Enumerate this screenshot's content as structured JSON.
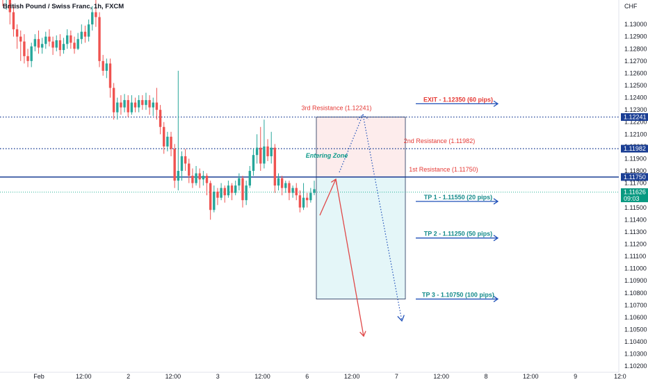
{
  "header": {
    "title": "British Pound / Swiss Franc, 1h, FXCM"
  },
  "colors": {
    "bull": "#26a69a",
    "bear": "#ef5350",
    "resistance_line": "#1a3e94",
    "tp_text": "#138a8a",
    "exit_text": "#e53935",
    "arrow_blue": "#1e4fb8"
  },
  "chart_data": {
    "type": "candlestick",
    "title": "British Pound / Swiss Franc, 1h, FXCM",
    "y_unit": "CHF",
    "ylim": [
      1.1015,
      1.132
    ],
    "y_ticks": [
      "1.13000",
      "1.12900",
      "1.12800",
      "1.12700",
      "1.12600",
      "1.12500",
      "1.12400",
      "1.12300",
      "1.12200",
      "1.12100",
      "1.12000",
      "1.11900",
      "1.11800",
      "1.11700",
      "1.11600",
      "1.11500",
      "1.11400",
      "1.11300",
      "1.11200",
      "1.11100",
      "1.11000",
      "1.10900",
      "1.10800",
      "1.10700",
      "1.10600",
      "1.10500",
      "1.10400",
      "1.10300",
      "1.10200"
    ],
    "x_ticks": [
      "Feb",
      "12:00",
      "2",
      "12:00",
      "3",
      "12:00",
      "6",
      "12:00",
      "7",
      "12:00",
      "8",
      "12:00",
      "9",
      "12:0"
    ],
    "price_badges": [
      {
        "value": 1.12241,
        "label": "1.12241",
        "color": "#1a3e94"
      },
      {
        "value": 1.11982,
        "label": "1.11982",
        "color": "#1a3e94"
      },
      {
        "value": 1.1175,
        "label": "1.11750",
        "color": "#1a3e94"
      },
      {
        "value": 1.11626,
        "label": "1.11626",
        "sub": "09:03",
        "color": "#089981"
      }
    ],
    "levels": [
      {
        "name": "3rd Resistance",
        "value": 1.12241,
        "label": "3rd Resistance (1.12241)",
        "style": "dotted"
      },
      {
        "name": "2nd Resistance",
        "value": 1.11982,
        "label": "2nd Resistance (1.11982)",
        "style": "dotted"
      },
      {
        "name": "1st Resistance",
        "value": 1.1175,
        "label": "1st Resistance  (1.11750)",
        "style": "solid"
      },
      {
        "name": "Current price",
        "value": 1.11626,
        "style": "dotted-green"
      }
    ],
    "targets": [
      {
        "label": "EXIT - 1.12350 (60 pips)",
        "value": 1.1235,
        "kind": "exit"
      },
      {
        "label": "TP 1 - 1.11550 (20 pips)",
        "value": 1.1155,
        "kind": "tp"
      },
      {
        "label": "TP 2 - 1.11250 (50 pips)",
        "value": 1.1125,
        "kind": "tp"
      },
      {
        "label": "TP 3 - 1.10750 (100 pips)",
        "value": 1.1075,
        "kind": "tp"
      }
    ],
    "position_box": {
      "entry": 1.1175,
      "stop": 1.12241,
      "target": 1.1075
    },
    "entering_zone_label": "Entering Zone",
    "candles": [
      [
        1.133,
        1.1322,
        1.1336,
        1.1315
      ],
      [
        1.1322,
        1.1326,
        1.1332,
        1.1312
      ],
      [
        1.1326,
        1.131,
        1.133,
        1.13
      ],
      [
        1.131,
        1.1296,
        1.1315,
        1.129
      ],
      [
        1.1296,
        1.129,
        1.13,
        1.128
      ],
      [
        1.129,
        1.1286,
        1.1295,
        1.127
      ],
      [
        1.1286,
        1.1274,
        1.1292,
        1.1268
      ],
      [
        1.1274,
        1.127,
        1.128,
        1.1265
      ],
      [
        1.127,
        1.1282,
        1.1285,
        1.1265
      ],
      [
        1.1282,
        1.1288,
        1.1292,
        1.1278
      ],
      [
        1.1288,
        1.1281,
        1.1295,
        1.1276
      ],
      [
        1.1281,
        1.1284,
        1.1289,
        1.1276
      ],
      [
        1.1284,
        1.129,
        1.1294,
        1.128
      ],
      [
        1.129,
        1.1286,
        1.1296,
        1.1282
      ],
      [
        1.1286,
        1.1281,
        1.129,
        1.1275
      ],
      [
        1.1281,
        1.1287,
        1.1291,
        1.1278
      ],
      [
        1.1287,
        1.1279,
        1.1292,
        1.1274
      ],
      [
        1.1279,
        1.1284,
        1.1289,
        1.1276
      ],
      [
        1.1284,
        1.1291,
        1.1296,
        1.128
      ],
      [
        1.1291,
        1.1285,
        1.1295,
        1.128
      ],
      [
        1.1285,
        1.128,
        1.129,
        1.1276
      ],
      [
        1.128,
        1.1288,
        1.1293,
        1.1279
      ],
      [
        1.1288,
        1.1294,
        1.13,
        1.1284
      ],
      [
        1.1294,
        1.129,
        1.1299,
        1.1285
      ],
      [
        1.129,
        1.13,
        1.1304,
        1.1286
      ],
      [
        1.13,
        1.131,
        1.1315,
        1.1295
      ],
      [
        1.131,
        1.1306,
        1.132,
        1.1298
      ],
      [
        1.1306,
        1.127,
        1.131,
        1.1265
      ],
      [
        1.127,
        1.1262,
        1.1275,
        1.1258
      ],
      [
        1.1262,
        1.1268,
        1.1272,
        1.1256
      ],
      [
        1.1268,
        1.1248,
        1.1272,
        1.124
      ],
      [
        1.1248,
        1.1228,
        1.1252,
        1.1222
      ],
      [
        1.1228,
        1.1236,
        1.124,
        1.1222
      ],
      [
        1.1236,
        1.1232,
        1.1242,
        1.1226
      ],
      [
        1.1232,
        1.1238,
        1.1243,
        1.1228
      ],
      [
        1.1238,
        1.1228,
        1.1242,
        1.1224
      ],
      [
        1.1228,
        1.1236,
        1.1242,
        1.1226
      ],
      [
        1.1236,
        1.1232,
        1.124,
        1.1228
      ],
      [
        1.1232,
        1.1238,
        1.1242,
        1.1228
      ],
      [
        1.1238,
        1.1234,
        1.1242,
        1.123
      ],
      [
        1.1234,
        1.1238,
        1.1244,
        1.123
      ],
      [
        1.1238,
        1.1232,
        1.1242,
        1.1226
      ],
      [
        1.1232,
        1.1236,
        1.124,
        1.1225
      ],
      [
        1.1236,
        1.123,
        1.1248,
        1.1222
      ],
      [
        1.123,
        1.1216,
        1.1234,
        1.121
      ],
      [
        1.1216,
        1.12,
        1.122,
        1.1194
      ],
      [
        1.12,
        1.1208,
        1.1212,
        1.1196
      ],
      [
        1.1208,
        1.1198,
        1.1212,
        1.1192
      ],
      [
        1.1198,
        1.1172,
        1.1202,
        1.1166
      ],
      [
        1.1172,
        1.118,
        1.1262,
        1.1164
      ],
      [
        1.118,
        1.1192,
        1.1196,
        1.1172
      ],
      [
        1.1192,
        1.1186,
        1.1198,
        1.118
      ],
      [
        1.1186,
        1.1176,
        1.119,
        1.117
      ],
      [
        1.1176,
        1.117,
        1.1182,
        1.1166
      ],
      [
        1.117,
        1.1178,
        1.1184,
        1.1168
      ],
      [
        1.1178,
        1.1173,
        1.1182,
        1.1166
      ],
      [
        1.1173,
        1.1176,
        1.118,
        1.1168
      ],
      [
        1.1176,
        1.117,
        1.1178,
        1.116
      ],
      [
        1.117,
        1.1148,
        1.1172,
        1.114
      ],
      [
        1.1148,
        1.1163,
        1.1168,
        1.1146
      ],
      [
        1.1163,
        1.1158,
        1.1166,
        1.1152
      ],
      [
        1.1158,
        1.1166,
        1.117,
        1.1156
      ],
      [
        1.1166,
        1.116,
        1.1168,
        1.1154
      ],
      [
        1.116,
        1.1168,
        1.1172,
        1.1158
      ],
      [
        1.1168,
        1.1162,
        1.117,
        1.1156
      ],
      [
        1.1162,
        1.1168,
        1.1172,
        1.116
      ],
      [
        1.1168,
        1.1174,
        1.1178,
        1.1164
      ],
      [
        1.1174,
        1.1156,
        1.1176,
        1.115
      ],
      [
        1.1156,
        1.1168,
        1.1172,
        1.1152
      ],
      [
        1.1168,
        1.118,
        1.1184,
        1.1166
      ],
      [
        1.118,
        1.1193,
        1.1198,
        1.1176
      ],
      [
        1.1193,
        1.1199,
        1.121,
        1.1186
      ],
      [
        1.1199,
        1.1186,
        1.1216,
        1.118
      ],
      [
        1.1186,
        1.12,
        1.1222,
        1.1182
      ],
      [
        1.12,
        1.1192,
        1.1206,
        1.1188
      ],
      [
        1.1192,
        1.1199,
        1.1212,
        1.1186
      ],
      [
        1.1199,
        1.1168,
        1.1202,
        1.1162
      ],
      [
        1.1168,
        1.1174,
        1.1178,
        1.1164
      ],
      [
        1.1174,
        1.1166,
        1.1176,
        1.116
      ],
      [
        1.1166,
        1.117,
        1.1172,
        1.1162
      ],
      [
        1.117,
        1.1162,
        1.1172,
        1.1156
      ],
      [
        1.1162,
        1.1166,
        1.1168,
        1.1158
      ],
      [
        1.1166,
        1.116,
        1.117,
        1.1156
      ],
      [
        1.116,
        1.115,
        1.1164,
        1.1146
      ],
      [
        1.115,
        1.1158,
        1.117,
        1.1148
      ],
      [
        1.1158,
        1.1156,
        1.1162,
        1.115
      ],
      [
        1.1156,
        1.1162,
        1.1166,
        1.1154
      ],
      [
        1.1162,
        1.1165,
        1.1172,
        1.116
      ]
    ]
  }
}
